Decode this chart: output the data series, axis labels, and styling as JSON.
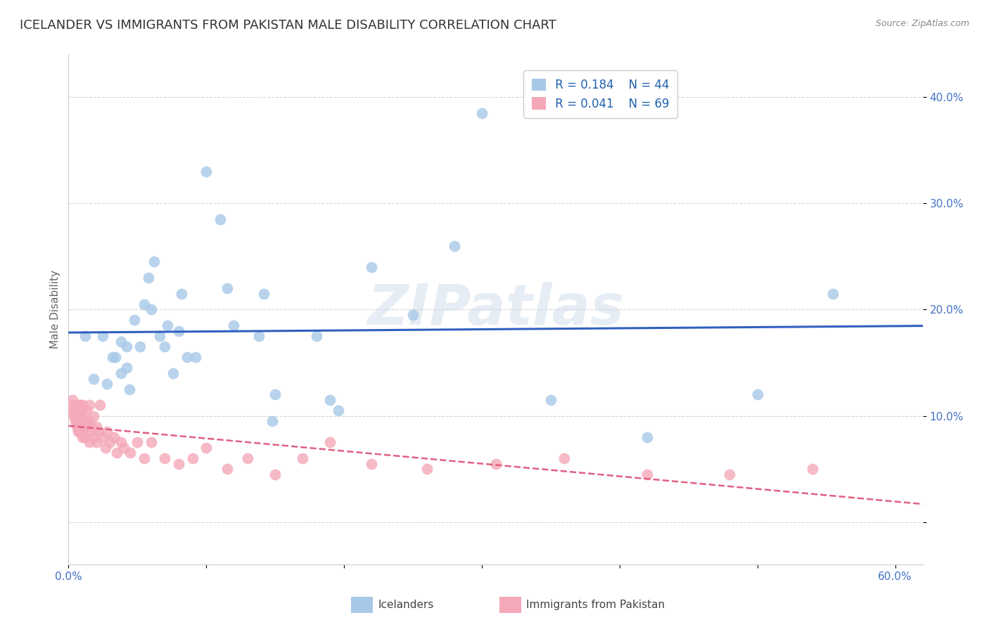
{
  "title": "ICELANDER VS IMMIGRANTS FROM PAKISTAN MALE DISABILITY CORRELATION CHART",
  "source": "Source: ZipAtlas.com",
  "ylabel": "Male Disability",
  "watermark": "ZIPatlas",
  "xlim": [
    0.0,
    0.62
  ],
  "ylim": [
    -0.04,
    0.44
  ],
  "xtick_positions": [
    0.0,
    0.1,
    0.2,
    0.3,
    0.4,
    0.5,
    0.6
  ],
  "xtick_labels": [
    "0.0%",
    "",
    "",
    "",
    "",
    "",
    "60.0%"
  ],
  "ytick_positions": [
    0.0,
    0.1,
    0.2,
    0.3,
    0.4
  ],
  "ytick_labels": [
    "",
    "10.0%",
    "20.0%",
    "30.0%",
    "40.0%"
  ],
  "legend_r1": "R = 0.184",
  "legend_n1": "N = 44",
  "legend_r2": "R = 0.041",
  "legend_n2": "N = 69",
  "color_blue": "#a8c8e8",
  "color_pink": "#f4a8b8",
  "line_blue": "#3060c0",
  "line_pink": "#e06080",
  "icelanders_x": [
    0.012,
    0.018,
    0.025,
    0.028,
    0.032,
    0.034,
    0.038,
    0.038,
    0.042,
    0.042,
    0.044,
    0.048,
    0.052,
    0.055,
    0.058,
    0.06,
    0.062,
    0.066,
    0.07,
    0.072,
    0.076,
    0.08,
    0.082,
    0.086,
    0.092,
    0.1,
    0.11,
    0.115,
    0.12,
    0.138,
    0.142,
    0.148,
    0.15,
    0.18,
    0.19,
    0.196,
    0.22,
    0.25,
    0.28,
    0.3,
    0.35,
    0.42,
    0.5,
    0.555
  ],
  "icelanders_y": [
    0.175,
    0.135,
    0.175,
    0.13,
    0.155,
    0.155,
    0.14,
    0.17,
    0.145,
    0.165,
    0.125,
    0.19,
    0.165,
    0.205,
    0.23,
    0.2,
    0.245,
    0.175,
    0.165,
    0.185,
    0.14,
    0.18,
    0.215,
    0.155,
    0.155,
    0.33,
    0.285,
    0.22,
    0.185,
    0.175,
    0.215,
    0.095,
    0.12,
    0.175,
    0.115,
    0.105,
    0.24,
    0.195,
    0.26,
    0.385,
    0.115,
    0.08,
    0.12,
    0.215
  ],
  "pakistan_x": [
    0.003,
    0.003,
    0.004,
    0.004,
    0.005,
    0.005,
    0.005,
    0.006,
    0.006,
    0.007,
    0.007,
    0.007,
    0.007,
    0.008,
    0.008,
    0.008,
    0.009,
    0.009,
    0.009,
    0.009,
    0.009,
    0.01,
    0.01,
    0.01,
    0.01,
    0.01,
    0.012,
    0.012,
    0.013,
    0.013,
    0.015,
    0.015,
    0.015,
    0.015,
    0.016,
    0.018,
    0.018,
    0.02,
    0.02,
    0.022,
    0.023,
    0.025,
    0.027,
    0.028,
    0.03,
    0.033,
    0.035,
    0.038,
    0.04,
    0.045,
    0.05,
    0.055,
    0.06,
    0.07,
    0.08,
    0.09,
    0.1,
    0.115,
    0.13,
    0.15,
    0.17,
    0.19,
    0.22,
    0.26,
    0.31,
    0.36,
    0.42,
    0.48,
    0.54
  ],
  "pakistan_y": [
    0.115,
    0.105,
    0.11,
    0.1,
    0.095,
    0.1,
    0.105,
    0.09,
    0.105,
    0.085,
    0.095,
    0.105,
    0.11,
    0.085,
    0.095,
    0.11,
    0.085,
    0.09,
    0.095,
    0.1,
    0.11,
    0.08,
    0.09,
    0.095,
    0.105,
    0.11,
    0.08,
    0.09,
    0.095,
    0.105,
    0.075,
    0.085,
    0.095,
    0.11,
    0.09,
    0.08,
    0.1,
    0.075,
    0.09,
    0.085,
    0.11,
    0.08,
    0.07,
    0.085,
    0.075,
    0.08,
    0.065,
    0.075,
    0.07,
    0.065,
    0.075,
    0.06,
    0.075,
    0.06,
    0.055,
    0.06,
    0.07,
    0.05,
    0.06,
    0.045,
    0.06,
    0.075,
    0.055,
    0.05,
    0.055,
    0.06,
    0.045,
    0.045,
    0.05
  ],
  "background_color": "#ffffff",
  "grid_color": "#d0d0d0",
  "title_fontsize": 13,
  "label_fontsize": 11,
  "tick_fontsize": 11,
  "legend_fontsize": 12
}
